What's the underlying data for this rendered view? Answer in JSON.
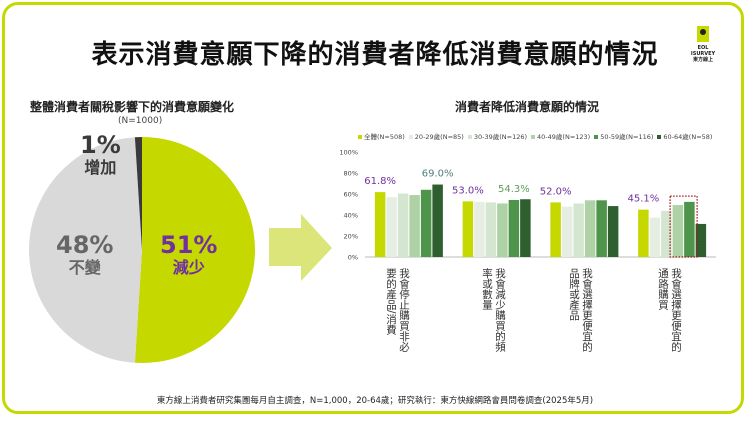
{
  "title": "表示消費意願下降的消費者降低消費意願的情況",
  "logo": {
    "lines": [
      "EOL",
      "ISURVEY",
      "東方線上"
    ]
  },
  "footer": "東方線上消費者研究集團每月自主調查，N=1,000，20-64歲；研究執行：東方快線網路會員問卷調查(2025年5月)",
  "colors": {
    "frame": "#c5d800",
    "reduce": "#c5d800",
    "unchanged": "#d9d9d9",
    "increase": "#3a3a3a",
    "purple": "#7030a0",
    "arrow": "#dbe57a"
  },
  "chart_data": [
    {
      "type": "pie",
      "title": "整體消費者關稅影響下的消費意願變化",
      "subtitle": "(N=1000)",
      "slices": [
        {
          "label": "減少",
          "value": 51,
          "display": "51%",
          "color": "#c5d800"
        },
        {
          "label": "不變",
          "value": 48,
          "display": "48%",
          "color": "#d9d9d9"
        },
        {
          "label": "增加",
          "value": 1,
          "display": "1%",
          "color": "#3a3a3a"
        }
      ]
    },
    {
      "type": "bar",
      "title": "消費者降低消費意願的情況",
      "categories": [
        "我會停止購買非必要的產品/消費",
        "我會減少購買的頻率或數量",
        "我會選擇更便宜的品牌或產品",
        "我會選擇更便宜的通路購買"
      ],
      "ylim": [
        0,
        100
      ],
      "yticks": [
        "0%",
        "20%",
        "40%",
        "60%",
        "80%",
        "100%"
      ],
      "legend_position": "top",
      "series": [
        {
          "name": "全體(N=508)",
          "color": "#c5d800",
          "values": [
            61.8,
            53.0,
            52.0,
            45.1
          ]
        },
        {
          "name": "20-29歲(N=85)",
          "color": "#e6eee4",
          "values": [
            57,
            52.5,
            48,
            37.5
          ]
        },
        {
          "name": "30-39歲(N=126)",
          "color": "#d4e6d0",
          "values": [
            60.5,
            52,
            51,
            44
          ]
        },
        {
          "name": "40-49歲(N=123)",
          "color": "#aed2a6",
          "values": [
            59,
            51,
            54,
            49.5
          ]
        },
        {
          "name": "50-59歲(N=116)",
          "color": "#4e944a",
          "values": [
            64,
            54.3,
            54,
            52.5
          ]
        },
        {
          "name": "60-64歲(N=58)",
          "color": "#2f5f2e",
          "values": [
            69.0,
            55,
            48.5,
            31.5
          ]
        }
      ],
      "data_labels": [
        {
          "category": 0,
          "series": 0,
          "text": "61.8%",
          "color": "#7030a0"
        },
        {
          "category": 0,
          "series": 5,
          "text": "69.0%",
          "color": "#4e7f7a"
        },
        {
          "category": 1,
          "series": 0,
          "text": "53.0%",
          "color": "#7030a0"
        },
        {
          "category": 1,
          "series": 4,
          "text": "54.3%",
          "color": "#5e9e5a"
        },
        {
          "category": 2,
          "series": 0,
          "text": "52.0%",
          "color": "#7030a0"
        },
        {
          "category": 3,
          "series": 0,
          "text": "45.1%",
          "color": "#7030a0"
        }
      ],
      "highlight": {
        "category": 3,
        "series": [
          3,
          4
        ],
        "style": "dotted-red-box"
      }
    }
  ]
}
